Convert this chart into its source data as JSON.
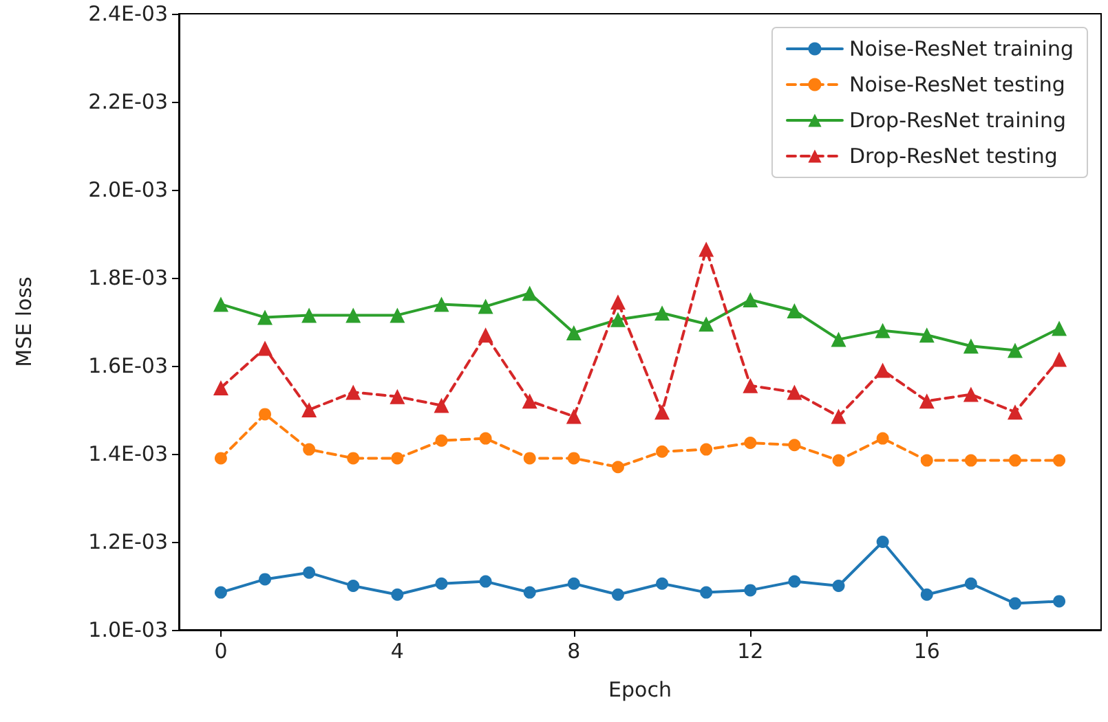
{
  "chart_data": {
    "type": "line",
    "xlabel": "Epoch",
    "ylabel": "MSE loss",
    "x": [
      0,
      1,
      2,
      3,
      4,
      5,
      6,
      7,
      8,
      9,
      10,
      11,
      12,
      13,
      14,
      15,
      16,
      17,
      18,
      19
    ],
    "xlim": [
      -0.95,
      19.95
    ],
    "xticks": [
      0,
      4,
      8,
      12,
      16
    ],
    "ylim": [
      0.001,
      0.0024
    ],
    "yticks": [
      {
        "value": 0.001,
        "label": "1.0E-03"
      },
      {
        "value": 0.0012,
        "label": "1.2E-03"
      },
      {
        "value": 0.0014,
        "label": "1.4E-03"
      },
      {
        "value": 0.0016,
        "label": "1.6E-03"
      },
      {
        "value": 0.0018,
        "label": "1.8E-03"
      },
      {
        "value": 0.002,
        "label": "2.0E-03"
      },
      {
        "value": 0.0022,
        "label": "2.2E-03"
      },
      {
        "value": 0.0024,
        "label": "2.4E-03"
      }
    ],
    "grid": false,
    "legend": "top right",
    "series": [
      {
        "name": "Noise-ResNet training",
        "color": "#1f77b4",
        "marker": "circle",
        "line_style": "solid",
        "values": [
          0.001085,
          0.001115,
          0.00113,
          0.0011,
          0.00108,
          0.001105,
          0.00111,
          0.001085,
          0.001105,
          0.00108,
          0.001105,
          0.001085,
          0.00109,
          0.00111,
          0.0011,
          0.0012,
          0.00108,
          0.001105,
          0.00106,
          0.001065
        ]
      },
      {
        "name": "Noise-ResNet testing",
        "color": "#ff7f0e",
        "marker": "circle",
        "line_style": "dashed",
        "values": [
          0.00139,
          0.00149,
          0.00141,
          0.00139,
          0.00139,
          0.00143,
          0.001435,
          0.00139,
          0.00139,
          0.00137,
          0.001405,
          0.00141,
          0.001425,
          0.00142,
          0.001385,
          0.001435,
          0.001385,
          0.001385,
          0.001385,
          0.001385
        ]
      },
      {
        "name": "Drop-ResNet training",
        "color": "#2ca02c",
        "marker": "triangle",
        "line_style": "solid",
        "values": [
          0.00174,
          0.00171,
          0.001715,
          0.001715,
          0.001715,
          0.00174,
          0.001735,
          0.001765,
          0.001675,
          0.001705,
          0.00172,
          0.001695,
          0.00175,
          0.001725,
          0.00166,
          0.00168,
          0.00167,
          0.001645,
          0.001635,
          0.001685
        ]
      },
      {
        "name": "Drop-ResNet testing",
        "color": "#d62728",
        "marker": "triangle",
        "line_style": "dashed",
        "values": [
          0.00155,
          0.00164,
          0.0015,
          0.00154,
          0.00153,
          0.00151,
          0.00167,
          0.00152,
          0.001485,
          0.001745,
          0.001495,
          0.001865,
          0.001555,
          0.00154,
          0.001485,
          0.00159,
          0.00152,
          0.001535,
          0.001495,
          0.001615
        ]
      }
    ]
  }
}
